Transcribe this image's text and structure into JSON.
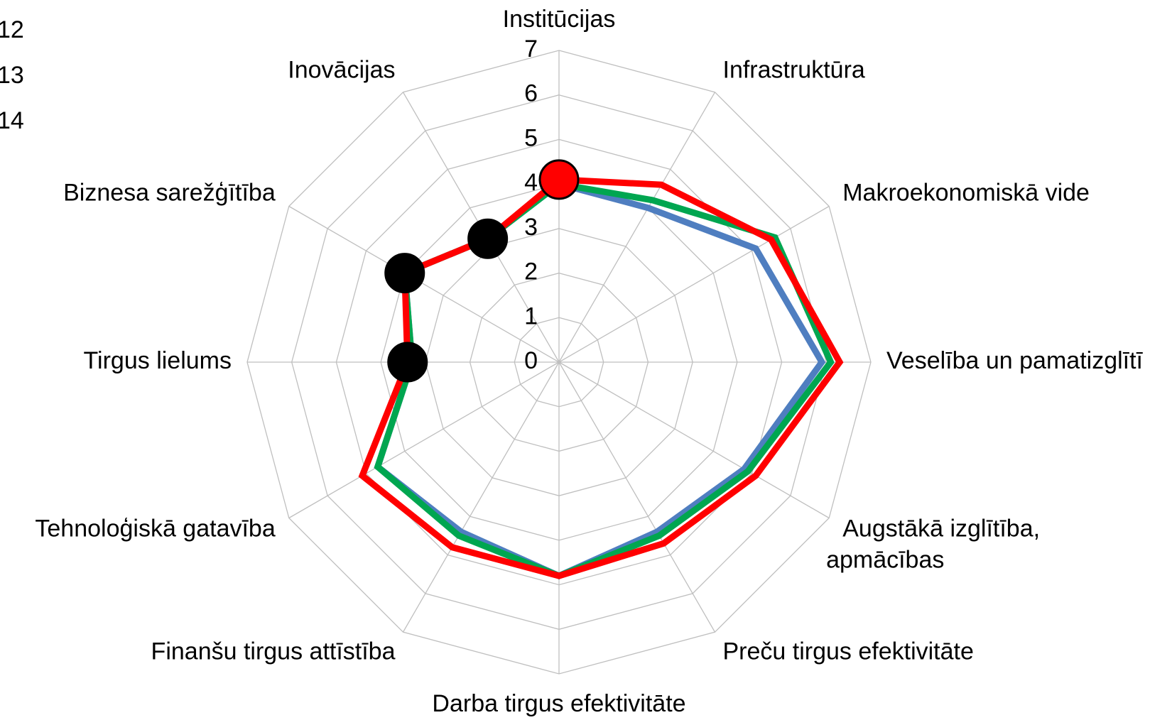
{
  "chart_data": {
    "type": "radar",
    "categories": [
      "Institūcijas",
      "Infrastruktūra",
      "Makroekonomiskā vide",
      "Veselība un pamatizglītī",
      "Augstākā izglītība, apmācības",
      "Preču tirgus efektivitāte",
      "Darba tirgus efektivitāte",
      "Finanšu tirgus attīstība",
      "Tehnoloģiskā gatavība",
      "Tirgus lielums",
      "Biznesa sarežģītība",
      "Inovācijas"
    ],
    "series": [
      {
        "name": "12",
        "color": "#4f7ec0",
        "values": [
          4.0,
          4.0,
          5.1,
          5.9,
          4.8,
          4.4,
          4.8,
          4.4,
          4.7,
          3.3,
          4.0,
          3.2
        ]
      },
      {
        "name": "13",
        "color": "#00a650",
        "values": [
          4.0,
          4.2,
          5.6,
          6.1,
          4.9,
          4.5,
          4.8,
          4.5,
          4.7,
          3.3,
          4.0,
          3.2
        ]
      },
      {
        "name": "14",
        "color": "#ff0000",
        "values": [
          4.1,
          4.6,
          5.5,
          6.3,
          5.1,
          4.7,
          4.8,
          4.8,
          5.1,
          3.4,
          4.0,
          3.2
        ]
      }
    ],
    "rlim": [
      0,
      7
    ],
    "rticks": [
      0,
      1,
      2,
      3,
      4,
      5,
      6,
      7
    ],
    "grid": true
  }
}
